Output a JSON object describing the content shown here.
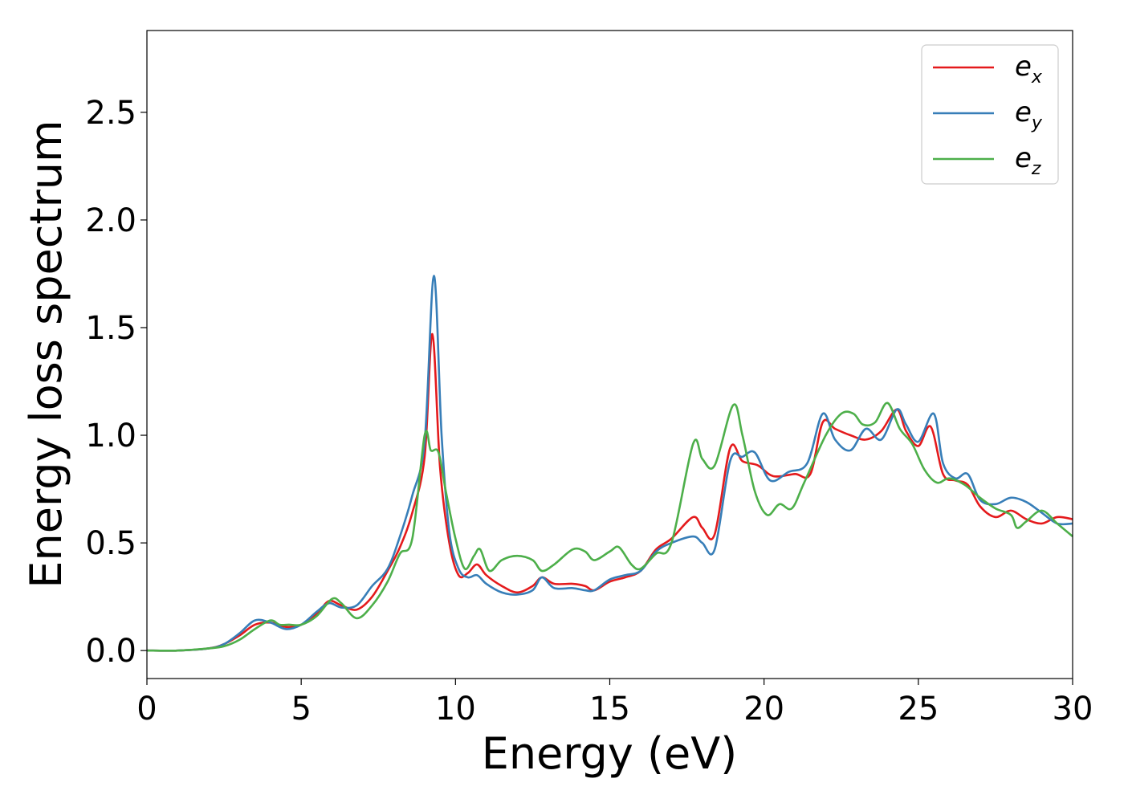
{
  "chart_data": {
    "type": "line",
    "xlabel": "Energy (eV)",
    "ylabel": "Energy loss spectrum",
    "xlim": [
      0,
      30
    ],
    "ylim": [
      -0.13,
      2.88
    ],
    "xticks": [
      "0",
      "5",
      "10",
      "15",
      "20",
      "25",
      "30"
    ],
    "yticks": [
      "0.0",
      "0.5",
      "1.0",
      "1.5",
      "2.0",
      "2.5"
    ],
    "grid": false,
    "legend_position": "top-right",
    "series": [
      {
        "name": "e_x",
        "legend_base": "e",
        "legend_sub": "x",
        "color": "#e41a1c",
        "x": [
          0,
          1,
          2,
          2.5,
          3,
          3.5,
          4,
          4.5,
          5,
          5.5,
          5.9,
          6.3,
          6.8,
          7.3,
          7.8,
          8.2,
          8.6,
          9.0,
          9.25,
          9.5,
          9.8,
          10.1,
          10.4,
          10.7,
          11.0,
          11.5,
          12.0,
          12.5,
          12.8,
          13.2,
          13.8,
          14.2,
          14.5,
          15.0,
          15.5,
          16.0,
          16.5,
          17.0,
          17.7,
          18.0,
          18.4,
          18.9,
          19.3,
          19.8,
          20.3,
          21.0,
          21.5,
          21.9,
          22.3,
          22.8,
          23.3,
          23.8,
          24.3,
          24.6,
          25.0,
          25.4,
          25.8,
          26.2,
          26.6,
          27.0,
          27.5,
          28.0,
          28.5,
          29.0,
          29.5,
          30.0
        ],
        "y": [
          0,
          0,
          0.01,
          0.03,
          0.07,
          0.12,
          0.13,
          0.11,
          0.12,
          0.17,
          0.23,
          0.21,
          0.19,
          0.25,
          0.37,
          0.48,
          0.64,
          0.9,
          1.47,
          0.85,
          0.5,
          0.35,
          0.36,
          0.4,
          0.35,
          0.3,
          0.27,
          0.3,
          0.34,
          0.31,
          0.31,
          0.3,
          0.28,
          0.32,
          0.34,
          0.37,
          0.47,
          0.52,
          0.62,
          0.57,
          0.54,
          0.94,
          0.88,
          0.86,
          0.81,
          0.82,
          0.82,
          1.06,
          1.03,
          1.0,
          0.98,
          1.02,
          1.12,
          1.02,
          0.95,
          1.04,
          0.82,
          0.79,
          0.77,
          0.67,
          0.62,
          0.65,
          0.61,
          0.59,
          0.62,
          0.61
        ]
      },
      {
        "name": "e_y",
        "legend_base": "e",
        "legend_sub": "y",
        "color": "#377eb8",
        "x": [
          0,
          1,
          2,
          2.5,
          3,
          3.5,
          4,
          4.5,
          5,
          5.5,
          5.9,
          6.3,
          6.8,
          7.3,
          7.8,
          8.2,
          8.6,
          9.0,
          9.3,
          9.55,
          9.8,
          10.1,
          10.4,
          10.7,
          11.0,
          11.5,
          12.0,
          12.5,
          12.8,
          13.2,
          13.8,
          14.2,
          14.5,
          15.0,
          15.5,
          16.0,
          16.5,
          17.0,
          17.7,
          18.0,
          18.4,
          18.9,
          19.3,
          19.7,
          20.2,
          20.8,
          21.4,
          21.9,
          22.3,
          22.8,
          23.3,
          23.8,
          24.3,
          24.6,
          25.0,
          25.5,
          25.8,
          26.2,
          26.6,
          27.0,
          27.5,
          28.0,
          28.5,
          29.0,
          29.5,
          30.0
        ],
        "y": [
          0,
          0,
          0.01,
          0.03,
          0.08,
          0.14,
          0.13,
          0.1,
          0.12,
          0.18,
          0.22,
          0.2,
          0.21,
          0.3,
          0.38,
          0.53,
          0.72,
          0.97,
          1.74,
          1.0,
          0.55,
          0.38,
          0.34,
          0.35,
          0.31,
          0.27,
          0.26,
          0.28,
          0.34,
          0.29,
          0.29,
          0.28,
          0.28,
          0.33,
          0.35,
          0.37,
          0.46,
          0.5,
          0.53,
          0.5,
          0.47,
          0.88,
          0.9,
          0.92,
          0.79,
          0.83,
          0.87,
          1.1,
          0.98,
          0.93,
          1.03,
          0.98,
          1.12,
          1.05,
          0.97,
          1.1,
          0.87,
          0.8,
          0.82,
          0.7,
          0.68,
          0.71,
          0.69,
          0.64,
          0.59,
          0.59
        ]
      },
      {
        "name": "e_z",
        "legend_base": "e",
        "legend_sub": "z",
        "color": "#4daf4a",
        "x": [
          0,
          1,
          2,
          2.5,
          3,
          3.5,
          4,
          4.3,
          4.6,
          5,
          5.5,
          6.0,
          6.3,
          6.8,
          7.3,
          7.8,
          8.2,
          8.6,
          9.0,
          9.2,
          9.45,
          9.7,
          10.0,
          10.3,
          10.6,
          10.8,
          11.1,
          11.5,
          12.0,
          12.5,
          12.8,
          13.2,
          13.8,
          14.2,
          14.5,
          15.0,
          15.3,
          15.7,
          16.0,
          16.5,
          17.0,
          17.7,
          18.0,
          18.4,
          19.0,
          19.3,
          19.7,
          20.1,
          20.5,
          20.9,
          21.3,
          22.0,
          22.5,
          22.9,
          23.2,
          23.6,
          24.0,
          24.4,
          24.8,
          25.2,
          25.6,
          26.0,
          26.5,
          27.0,
          27.5,
          28.0,
          28.2,
          28.5,
          29.0,
          29.5,
          30.0
        ],
        "y": [
          0,
          0,
          0.01,
          0.02,
          0.05,
          0.1,
          0.14,
          0.12,
          0.12,
          0.12,
          0.16,
          0.24,
          0.22,
          0.15,
          0.21,
          0.32,
          0.45,
          0.52,
          1.0,
          0.93,
          0.92,
          0.73,
          0.52,
          0.38,
          0.44,
          0.47,
          0.37,
          0.42,
          0.44,
          0.42,
          0.37,
          0.4,
          0.47,
          0.46,
          0.42,
          0.46,
          0.48,
          0.4,
          0.38,
          0.45,
          0.5,
          0.96,
          0.89,
          0.86,
          1.14,
          1.0,
          0.74,
          0.63,
          0.68,
          0.66,
          0.78,
          1.0,
          1.1,
          1.1,
          1.05,
          1.06,
          1.15,
          1.03,
          0.96,
          0.84,
          0.78,
          0.8,
          0.77,
          0.71,
          0.66,
          0.63,
          0.57,
          0.6,
          0.65,
          0.59,
          0.53
        ]
      }
    ]
  }
}
